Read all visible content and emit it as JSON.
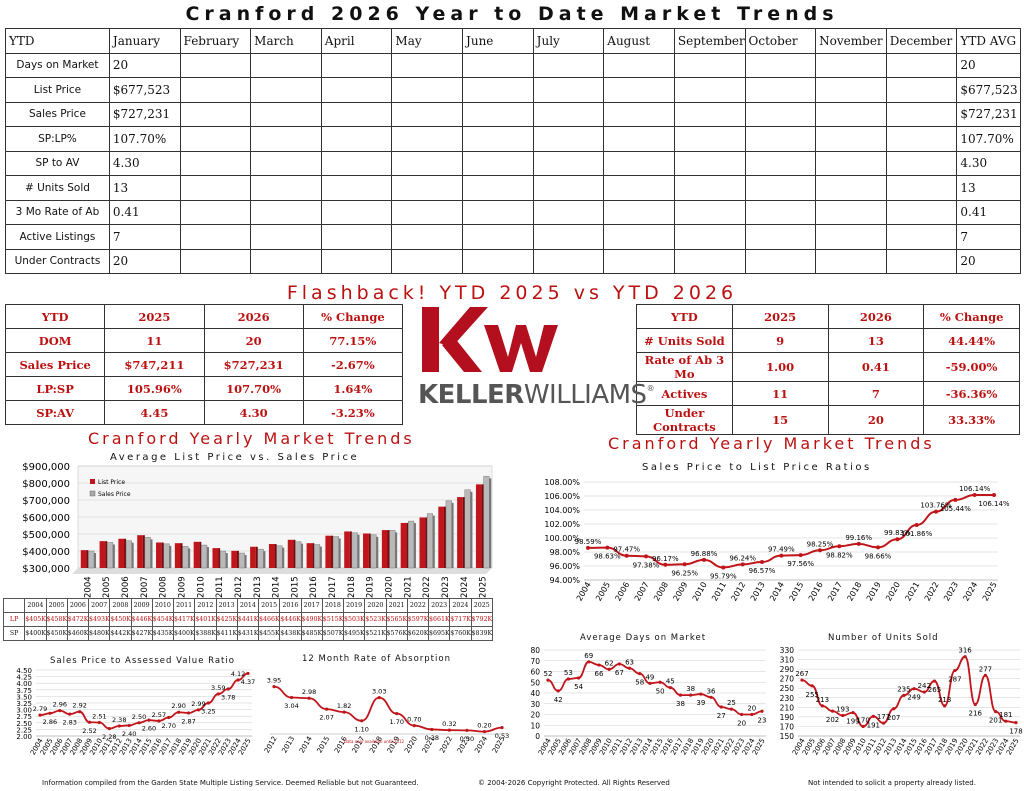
{
  "title": "Cranford 2026 Year to Date Market Trends",
  "ytd_table": {
    "header": [
      "YTD",
      "January",
      "February",
      "March",
      "April",
      "May",
      "June",
      "July",
      "August",
      "September",
      "October",
      "November",
      "December",
      "YTD AVG"
    ],
    "rows": [
      {
        "label": "Days on Market",
        "jan": "20",
        "avg": "20"
      },
      {
        "label": "List Price",
        "jan": "$677,523",
        "avg": "$677,523"
      },
      {
        "label": "Sales Price",
        "jan": "$727,231",
        "avg": "$727,231"
      },
      {
        "label": "SP:LP%",
        "jan": "107.70%",
        "avg": "107.70%"
      },
      {
        "label": "SP to AV",
        "jan": "4.30",
        "avg": "4.30"
      },
      {
        "label": "# Units Sold",
        "jan": "13",
        "avg": "13"
      },
      {
        "label": "3 Mo Rate of Ab",
        "jan": "0.41",
        "avg": "0.41"
      },
      {
        "label": "Active Listings",
        "jan": "7",
        "avg": "7"
      },
      {
        "label": "Under Contracts",
        "jan": "20",
        "avg": "20"
      }
    ]
  },
  "flashback": {
    "title": "Flashback!  YTD 2025 vs YTD 2026",
    "left": {
      "header": [
        "YTD",
        "2025",
        "2026",
        "% Change"
      ],
      "rows": [
        [
          "DOM",
          "11",
          "20",
          "77.15%"
        ],
        [
          "Sales Price",
          "$747,211",
          "$727,231",
          "-2.67%"
        ],
        [
          "LP:SP",
          "105.96%",
          "107.70%",
          "1.64%"
        ],
        [
          "SP:AV",
          "4.45",
          "4.30",
          "-3.23%"
        ]
      ]
    },
    "right": {
      "header": [
        "YTD",
        "2025",
        "2026",
        "% Change"
      ],
      "rows": [
        [
          "# Units Sold",
          "9",
          "13",
          "44.44%"
        ],
        [
          "Rate of Ab 3 Mo",
          "1.00",
          "0.41",
          "-59.00%"
        ],
        [
          "Actives",
          "11",
          "7",
          "-36.36%"
        ],
        [
          "Under Contracts",
          "15",
          "20",
          "33.33%"
        ]
      ]
    }
  },
  "logo": {
    "mark": "kw",
    "wordmark_a": "KELLER",
    "wordmark_b": "WILLIAMS",
    "reg": "®",
    "color": "#b40f1e"
  },
  "colors": {
    "accent": "#b11a1a",
    "list": "#c0151b",
    "sales": "#a8a8a8"
  },
  "footer": {
    "left": "Information compiled from the Garden State Multiple Listing Service.  Deemed Reliable but not Guaranteed.",
    "center": "© 2004-2026 Copyright Protected.  All Rights Reserved",
    "right": "Not intended to solicit a property already listed."
  },
  "chart_data": [
    {
      "id": "lp_sp",
      "type": "bar",
      "heading": "Cranford Yearly Market Trends",
      "title": "Average List Price vs. Sales Price",
      "categories": [
        "2004",
        "2005",
        "2006",
        "2007",
        "2008",
        "2009",
        "2010",
        "2011",
        "2012",
        "2013",
        "2014",
        "2015",
        "2016",
        "2017",
        "2018",
        "2019",
        "2020",
        "2021",
        "2022",
        "2023",
        "2024",
        "2025"
      ],
      "series": [
        {
          "name": "List Price",
          "values": [
            405,
            458,
            472,
            493,
            450,
            446,
            454,
            417,
            401,
            425,
            441,
            466,
            446,
            490,
            515,
            503,
            523,
            565,
            597,
            661,
            717,
            792
          ],
          "labels": [
            "$405K",
            "$458K",
            "$472K",
            "$493K",
            "$450K",
            "$446K",
            "$454K",
            "$417K",
            "$401K",
            "$425K",
            "$441K",
            "$466K",
            "$446K",
            "$490K",
            "$515K",
            "$503K",
            "$523K",
            "$565K",
            "$597K",
            "$661K",
            "$717K",
            "$792K"
          ]
        },
        {
          "name": "Sales Price",
          "values": [
            400,
            450,
            460,
            480,
            442,
            427,
            435,
            400,
            388,
            411,
            431,
            455,
            438,
            485,
            507,
            495,
            521,
            576,
            620,
            695,
            760,
            839
          ],
          "labels": [
            "$400K",
            "$450K",
            "$460K",
            "$480K",
            "$442K",
            "$427K",
            "$435K",
            "$400K",
            "$388K",
            "$411K",
            "$431K",
            "$455K",
            "$438K",
            "$485K",
            "$507K",
            "$495K",
            "$521K",
            "$576K",
            "$620K",
            "$695K",
            "$760K",
            "$839K"
          ]
        }
      ],
      "table_row_labels": [
        "LP",
        "SP"
      ],
      "ylim": [
        300,
        900
      ],
      "yticks": [
        "$300,000",
        "$400,000",
        "$500,000",
        "$600,000",
        "$700,000",
        "$800,000",
        "$900,000"
      ]
    },
    {
      "id": "ratio",
      "type": "line",
      "heading": "Cranford Yearly Market Trends",
      "title": "Sales Price to List Price Ratios",
      "categories": [
        "2004",
        "2005",
        "2006",
        "2007",
        "2008",
        "2009",
        "2010",
        "2011",
        "2012",
        "2013",
        "2014",
        "2015",
        "2016",
        "2017",
        "2018",
        "2019",
        "2020",
        "2021",
        "2022",
        "2023",
        "2024",
        "2025"
      ],
      "values": [
        98.59,
        98.63,
        97.47,
        97.38,
        96.17,
        96.25,
        96.88,
        95.79,
        96.24,
        96.57,
        97.49,
        97.56,
        98.25,
        98.82,
        99.16,
        98.66,
        99.83,
        101.86,
        103.76,
        105.44,
        106.14,
        106.14
      ],
      "labels": [
        "98.59%",
        "98.63%",
        "97.47%",
        "97.38%",
        "96.17%",
        "96.25%",
        "96.88%",
        "95.79%",
        "96.24%",
        "96.57%",
        "97.49%",
        "97.56%",
        "98.25%",
        "98.82%",
        "99.16%",
        "98.66%",
        "99.83%",
        "101.86%",
        "103.76%",
        "105.44%",
        "106.14%",
        "106.14%"
      ],
      "ylim": [
        94,
        108
      ],
      "yticks": [
        "94.00%",
        "96.00%",
        "98.00%",
        "100.00%",
        "102.00%",
        "104.00%",
        "106.00%",
        "108.00%"
      ]
    },
    {
      "id": "spav",
      "type": "line",
      "title": "Sales Price to Assessed Value Ratio",
      "categories": [
        "2004",
        "2005",
        "2006",
        "2007",
        "2008",
        "2009",
        "2010",
        "2011",
        "2012",
        "2013",
        "2014",
        "2015",
        "2016",
        "2017",
        "2018",
        "2019",
        "2020",
        "2021",
        "2022",
        "2023",
        "2024",
        "2025"
      ],
      "values": [
        2.79,
        2.86,
        2.96,
        2.83,
        2.92,
        2.52,
        2.51,
        2.28,
        2.38,
        2.4,
        2.5,
        2.6,
        2.57,
        2.7,
        2.9,
        2.87,
        2.99,
        3.25,
        3.59,
        3.78,
        4.12,
        4.37
      ],
      "labels": [
        "2.79",
        "2.86",
        "2.96",
        "2.83",
        "2.92",
        "2.52",
        "2.51",
        "2.28",
        "2.38",
        "2.40",
        "2.50",
        "2.60",
        "2.57",
        "2.70",
        "2.90",
        "2.87",
        "2.99",
        "3.25",
        "3.59",
        "3.78",
        "4.12",
        "4.37"
      ],
      "ylim": [
        2,
        4.5
      ],
      "yticks": [
        "2.00",
        "2.25",
        "2.50",
        "2.75",
        "3.00",
        "3.25",
        "3.50",
        "3.75",
        "4.00",
        "4.25",
        "4.50"
      ]
    },
    {
      "id": "absorb",
      "type": "line",
      "title": "12 Month Rate of Absorption",
      "note": "Data only available until 2012",
      "categories": [
        "2012",
        "2013",
        "2014",
        "2015",
        "2016",
        "2017",
        "2018",
        "2019",
        "2020",
        "2021",
        "2022",
        "2023",
        "2024",
        "2025"
      ],
      "values": [
        3.95,
        3.04,
        2.98,
        2.07,
        1.82,
        1.1,
        3.03,
        1.7,
        0.7,
        0.38,
        0.32,
        0.3,
        0.2,
        0.53
      ],
      "labels": [
        "3.95",
        "3.04",
        "2.98",
        "2.07",
        "1.82",
        "1.10",
        "3.03",
        "1.70",
        "0.70",
        "0.38",
        "0.32",
        "0.30",
        "0.20",
        "0.53"
      ],
      "ylim": [
        0,
        5
      ]
    },
    {
      "id": "dom",
      "type": "line",
      "title": "Average Days on Market",
      "categories": [
        "2004",
        "2005",
        "2006",
        "2007",
        "2008",
        "2009",
        "2010",
        "2011",
        "2012",
        "2013",
        "2014",
        "2015",
        "2016",
        "2017",
        "2018",
        "2019",
        "2020",
        "2021",
        "2022",
        "2023",
        "2024",
        "2025"
      ],
      "values": [
        52,
        42,
        53,
        54,
        69,
        66,
        62,
        67,
        63,
        58,
        49,
        50,
        45,
        38,
        38,
        39,
        36,
        27,
        25,
        20,
        20,
        23
      ],
      "labels": [
        "52",
        "42",
        "53",
        "54",
        "69",
        "66",
        "62",
        "67",
        "63",
        "58",
        "49",
        "50",
        "45",
        "38",
        "38",
        "39",
        "36",
        "27",
        "25",
        "20",
        "20",
        "23"
      ],
      "ylim": [
        0,
        80
      ],
      "yticks": [
        "0",
        "10",
        "20",
        "30",
        "40",
        "50",
        "60",
        "70",
        "80"
      ]
    },
    {
      "id": "units",
      "type": "line",
      "title": "Number of Units Sold",
      "categories": [
        "2004",
        "2005",
        "2006",
        "2007",
        "2008",
        "2009",
        "2010",
        "2011",
        "2012",
        "2013",
        "2014",
        "2015",
        "2016",
        "2017",
        "2018",
        "2019",
        "2020",
        "2021",
        "2022",
        "2023",
        "2024",
        "2025"
      ],
      "values": [
        267,
        255,
        213,
        202,
        193,
        199,
        170,
        191,
        177,
        207,
        235,
        249,
        242,
        265,
        213,
        287,
        316,
        216,
        277,
        201,
        181,
        178
      ],
      "labels": [
        "267",
        "255",
        "213",
        "202",
        "193",
        "199",
        "170",
        "191",
        "177",
        "207",
        "235",
        "249",
        "242",
        "265",
        "213",
        "287",
        "316",
        "216",
        "277",
        "201",
        "181",
        "178"
      ],
      "ylim": [
        150,
        330
      ],
      "yticks": [
        "150",
        "170",
        "190",
        "210",
        "230",
        "250",
        "270",
        "290",
        "310",
        "330"
      ]
    }
  ]
}
